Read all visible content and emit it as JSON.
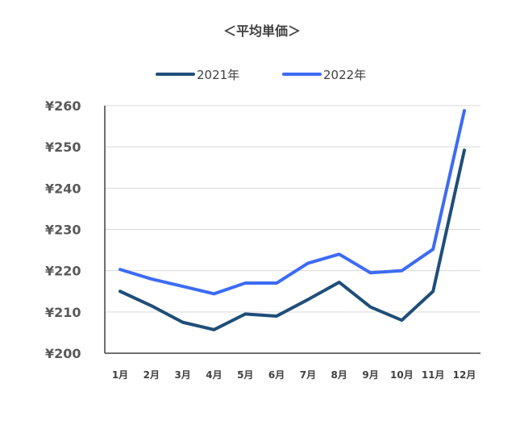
{
  "chart_data": {
    "type": "line",
    "title": "＜平均単価＞",
    "categories": [
      "1月",
      "2月",
      "3月",
      "4月",
      "5月",
      "6月",
      "7月",
      "8月",
      "9月",
      "10月",
      "11月",
      "12月"
    ],
    "series": [
      {
        "name": "2021年",
        "color": "#1f4e79",
        "values": [
          215,
          211.5,
          207.5,
          205.7,
          209.5,
          209,
          213,
          217.2,
          211.2,
          208,
          215,
          249.2
        ]
      },
      {
        "name": "2022年",
        "color": "#3d6bf5",
        "values": [
          220.3,
          218,
          216.2,
          214.4,
          217,
          217,
          221.8,
          224,
          219.5,
          220,
          225.2,
          258.8
        ]
      }
    ],
    "ylim": [
      200,
      260
    ],
    "yticks": [
      200,
      210,
      220,
      230,
      240,
      250,
      260
    ],
    "ytick_labels": [
      "¥200",
      "¥210",
      "¥220",
      "¥230",
      "¥240",
      "¥250",
      "¥260"
    ],
    "grid": true,
    "legend_position": "top-center"
  }
}
